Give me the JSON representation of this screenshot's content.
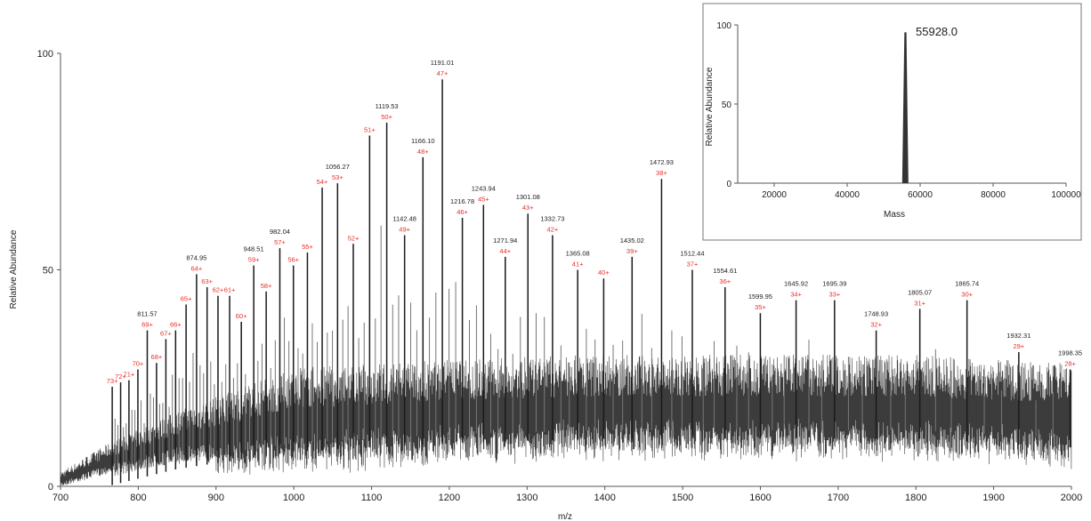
{
  "colors": {
    "axis": "#555555",
    "trace": "#1a1a1a",
    "charge_label": "#e8302a",
    "mz_label": "#222222"
  },
  "chart_data": [
    {
      "type": "line",
      "title": "",
      "xlabel": "m/z",
      "ylabel": "Relative Abundance",
      "xlim": [
        700,
        2000
      ],
      "ylim": [
        0,
        100
      ],
      "x_ticks": [
        "700",
        "800",
        "900",
        "1000",
        "1100",
        "1200",
        "1300",
        "1400",
        "1500",
        "1600",
        "1700",
        "1800",
        "1900",
        "2000"
      ],
      "y_ticks": [
        "0",
        "50",
        "100"
      ],
      "peaks": [
        {
          "mz": 766.5,
          "y": 23,
          "mz_label": "",
          "charge": "73+"
        },
        {
          "mz": 777.3,
          "y": 24,
          "mz_label": "",
          "charge": "72+"
        },
        {
          "mz": 788.0,
          "y": 24.5,
          "mz_label": "",
          "charge": "71+"
        },
        {
          "mz": 799.5,
          "y": 27,
          "mz_label": "",
          "charge": "70+"
        },
        {
          "mz": 811.57,
          "y": 36,
          "mz_label": "811.57",
          "charge": "69+"
        },
        {
          "mz": 823.5,
          "y": 28.5,
          "mz_label": "",
          "charge": "68+"
        },
        {
          "mz": 835.5,
          "y": 34,
          "mz_label": "",
          "charge": "67+"
        },
        {
          "mz": 848.0,
          "y": 36,
          "mz_label": "",
          "charge": "66+"
        },
        {
          "mz": 861.5,
          "y": 42,
          "mz_label": "",
          "charge": "65+"
        },
        {
          "mz": 874.95,
          "y": 49,
          "mz_label": "874.95",
          "charge": "64+"
        },
        {
          "mz": 888.5,
          "y": 46,
          "mz_label": "",
          "charge": "63+"
        },
        {
          "mz": 902.5,
          "y": 44,
          "mz_label": "",
          "charge": "62+"
        },
        {
          "mz": 917.5,
          "y": 44,
          "mz_label": "",
          "charge": "61+"
        },
        {
          "mz": 932.5,
          "y": 38,
          "mz_label": "",
          "charge": "60+"
        },
        {
          "mz": 948.51,
          "y": 51,
          "mz_label": "948.51",
          "charge": "59+"
        },
        {
          "mz": 964.5,
          "y": 45,
          "mz_label": "",
          "charge": "58+"
        },
        {
          "mz": 982.04,
          "y": 55,
          "mz_label": "982.04",
          "charge": "57+"
        },
        {
          "mz": 999.5,
          "y": 51,
          "mz_label": "",
          "charge": "56+"
        },
        {
          "mz": 1017.5,
          "y": 54,
          "mz_label": "",
          "charge": "55+"
        },
        {
          "mz": 1036.5,
          "y": 69,
          "mz_label": "",
          "charge": "54+"
        },
        {
          "mz": 1056.27,
          "y": 70,
          "mz_label": "1056.27",
          "charge": "53+"
        },
        {
          "mz": 1076.5,
          "y": 56,
          "mz_label": "",
          "charge": "52+"
        },
        {
          "mz": 1097.5,
          "y": 81,
          "mz_label": "",
          "charge": "51+"
        },
        {
          "mz": 1119.53,
          "y": 84,
          "mz_label": "1119.53",
          "charge": "50+"
        },
        {
          "mz": 1142.48,
          "y": 58,
          "mz_label": "1142.48",
          "charge": "49+"
        },
        {
          "mz": 1166.1,
          "y": 76,
          "mz_label": "1166.10",
          "charge": "48+"
        },
        {
          "mz": 1191.01,
          "y": 94,
          "mz_label": "1191.01",
          "charge": "47+"
        },
        {
          "mz": 1216.78,
          "y": 62,
          "mz_label": "1216.78",
          "charge": "46+"
        },
        {
          "mz": 1243.94,
          "y": 65,
          "mz_label": "1243.94",
          "charge": "45+"
        },
        {
          "mz": 1271.94,
          "y": 53,
          "mz_label": "1271.94",
          "charge": "44+"
        },
        {
          "mz": 1301.08,
          "y": 63,
          "mz_label": "1301.08",
          "charge": "43+"
        },
        {
          "mz": 1332.73,
          "y": 58,
          "mz_label": "1332.73",
          "charge": "42+"
        },
        {
          "mz": 1365.08,
          "y": 50,
          "mz_label": "1365.08",
          "charge": "41+"
        },
        {
          "mz": 1398.5,
          "y": 48,
          "mz_label": "",
          "charge": "40+"
        },
        {
          "mz": 1435.02,
          "y": 53,
          "mz_label": "1435.02",
          "charge": "39+"
        },
        {
          "mz": 1472.93,
          "y": 71,
          "mz_label": "1472.93",
          "charge": "38+"
        },
        {
          "mz": 1512.44,
          "y": 50,
          "mz_label": "1512.44",
          "charge": "37+"
        },
        {
          "mz": 1554.61,
          "y": 46,
          "mz_label": "1554.61",
          "charge": "36+"
        },
        {
          "mz": 1599.95,
          "y": 40,
          "mz_label": "1599.95",
          "charge": "35+"
        },
        {
          "mz": 1645.92,
          "y": 43,
          "mz_label": "1645.92",
          "charge": "34+"
        },
        {
          "mz": 1695.39,
          "y": 43,
          "mz_label": "1695.39",
          "charge": "33+"
        },
        {
          "mz": 1748.93,
          "y": 36,
          "mz_label": "1748.93",
          "charge": "32+"
        },
        {
          "mz": 1805.07,
          "y": 41,
          "mz_label": "1805.07",
          "charge": "31+"
        },
        {
          "mz": 1865.74,
          "y": 43,
          "mz_label": "1865.74",
          "charge": "30+"
        },
        {
          "mz": 1932.31,
          "y": 31,
          "mz_label": "1932.31",
          "charge": "29+"
        },
        {
          "mz": 1998.35,
          "y": 27,
          "mz_label": "1998.35",
          "charge": "28+"
        }
      ],
      "baseline": [
        {
          "mz": 700,
          "y": 1
        },
        {
          "mz": 760,
          "y": 5
        },
        {
          "mz": 850,
          "y": 9
        },
        {
          "mz": 1000,
          "y": 13
        },
        {
          "mz": 1200,
          "y": 15
        },
        {
          "mz": 1400,
          "y": 16
        },
        {
          "mz": 1600,
          "y": 16
        },
        {
          "mz": 1800,
          "y": 16
        },
        {
          "mz": 2000,
          "y": 14
        }
      ]
    },
    {
      "type": "line",
      "title": "",
      "xlabel": "Mass",
      "ylabel": "Relative Abundance",
      "xlim": [
        10000,
        100000
      ],
      "ylim": [
        0,
        100
      ],
      "x_ticks": [
        "20000",
        "40000",
        "60000",
        "80000",
        "100000"
      ],
      "y_ticks": [
        "0",
        "50",
        "100"
      ],
      "peak": {
        "mass": 55928.0,
        "y": 95,
        "label": "55928.0"
      }
    }
  ]
}
